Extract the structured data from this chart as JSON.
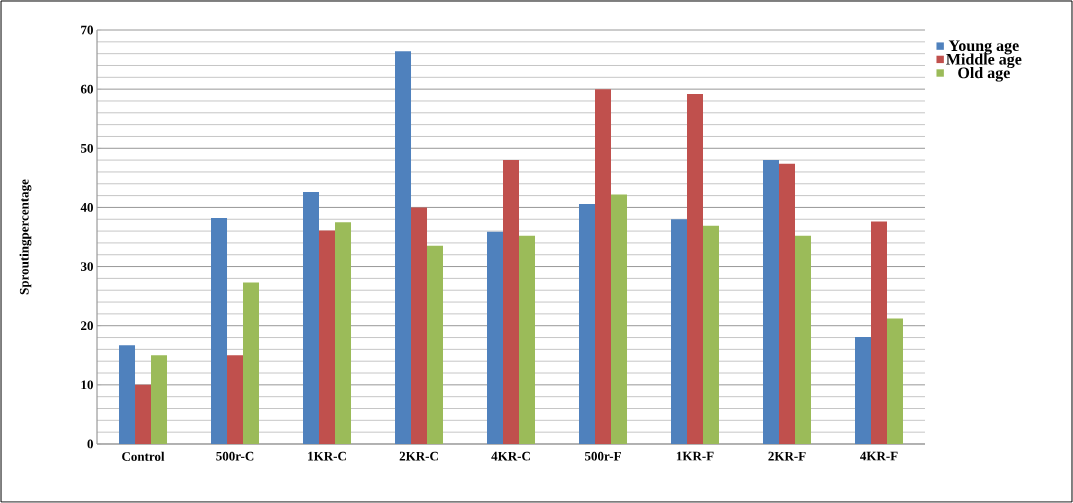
{
  "chart_data": {
    "type": "bar",
    "ylabel": "Sproutingpercentage",
    "categories": [
      "Control",
      "500r-C",
      "1KR-C",
      "2KR-C",
      "4KR-C",
      "500r-F",
      "1KR-F",
      "2KR-F",
      "4KR-F"
    ],
    "series": [
      {
        "name": "Young age",
        "color": "#4f81bd",
        "values": [
          16.7,
          38.2,
          42.6,
          66.4,
          35.9,
          40.6,
          38,
          48,
          18.1
        ]
      },
      {
        "name": "Middle age",
        "color": "#c0504d",
        "values": [
          10,
          15,
          36.1,
          40,
          48,
          60,
          59.2,
          47.4,
          37.6
        ]
      },
      {
        "name": "Old age",
        "color": "#9bbb59",
        "values": [
          15,
          27.3,
          37.5,
          33.5,
          35.2,
          42.2,
          36.9,
          35.2,
          21.2
        ]
      }
    ],
    "ylim": [
      0,
      70
    ],
    "yticks": [
      0,
      10,
      20,
      30,
      40,
      50,
      60,
      70
    ],
    "grid": "y",
    "legend": "top right"
  }
}
